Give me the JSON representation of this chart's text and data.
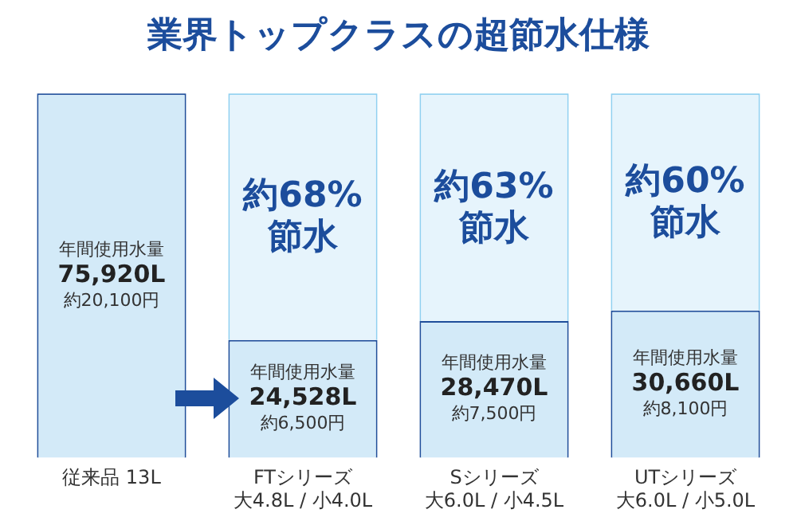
{
  "chart_data": {
    "type": "bar",
    "title": "業界トップクラスの超節水仕様",
    "categories": [
      "従来品 13L",
      "FTシリーズ大4.8L / 小4.0L",
      "Sシリーズ大6.0L / 小4.5L",
      "UTシリーズ大6.0L / 小5.0L"
    ],
    "stacked": true,
    "series": [
      {
        "color": "#d3eaf8",
        "values": [
          75920,
          24528,
          28470,
          30660
        ],
        "value_labels": [
          "75,920L",
          "24,528L",
          "28,470L",
          "30,660L"
        ]
      },
      {
        "color": "#e6f4fc",
        "values": [
          null,
          51392,
          47450,
          45260
        ]
      }
    ],
    "annotations": [
      "年間使用水量",
      "約20,100円",
      "約68%\n節水",
      "年間使用水量",
      "約6,500円",
      "約63%\n節水",
      "年間使用水量",
      "約7,500円",
      "約60%\n節水",
      "年間使用水量",
      "約8,100円"
    ],
    "legend": false,
    "grid": false
  }
}
